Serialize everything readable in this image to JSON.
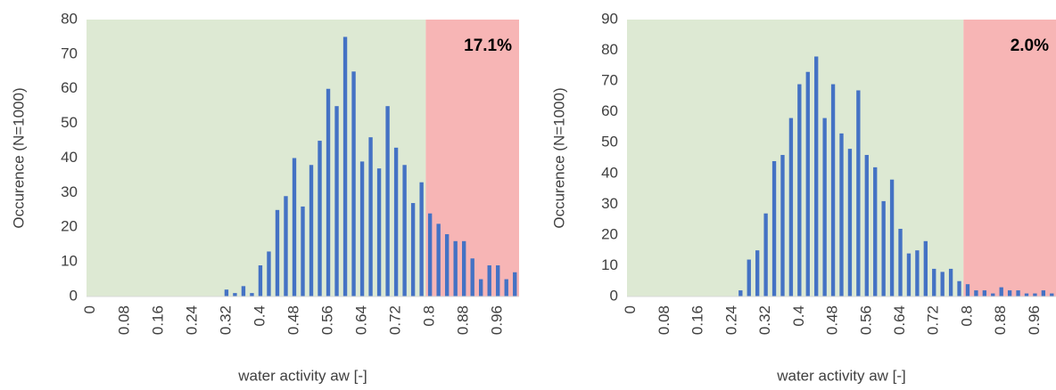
{
  "chart_data": [
    {
      "type": "bar",
      "x_label": "water activity aw [-]",
      "y_label": "Occurence (N=1000)",
      "annotation": "17.1%",
      "categories": [
        "0",
        null,
        null,
        null,
        "0.08",
        null,
        null,
        null,
        "0.16",
        null,
        null,
        null,
        "0.24",
        null,
        null,
        null,
        "0.32",
        null,
        null,
        null,
        "0.4",
        null,
        null,
        null,
        "0.48",
        null,
        null,
        null,
        "0.56",
        null,
        null,
        null,
        "0.64",
        null,
        null,
        null,
        "0.72",
        null,
        null,
        null,
        "0.8",
        null,
        null,
        null,
        "0.88",
        null,
        null,
        null,
        "0.96",
        null,
        null
      ],
      "values": [
        0,
        0,
        0,
        0,
        0,
        0,
        0,
        0,
        0,
        0,
        0,
        0,
        0,
        0,
        0,
        0,
        2,
        1,
        3,
        1,
        9,
        13,
        25,
        29,
        40,
        26,
        38,
        45,
        60,
        55,
        75,
        65,
        39,
        46,
        37,
        55,
        43,
        38,
        27,
        33,
        24,
        21,
        18,
        16,
        16,
        11,
        5,
        9,
        9,
        5,
        7
      ],
      "color": "#4472c4",
      "ylim": [
        0,
        80
      ],
      "yticks": [
        0,
        10,
        20,
        30,
        40,
        50,
        60,
        70,
        80
      ]
    },
    {
      "type": "bar",
      "x_label": "water activity aw [-]",
      "y_label": "Occurence (N=1000)",
      "annotation": "2.0%",
      "categories": [
        "0",
        null,
        null,
        null,
        "0.08",
        null,
        null,
        null,
        "0.16",
        null,
        null,
        null,
        "0.24",
        null,
        null,
        null,
        "0.32",
        null,
        null,
        null,
        "0.4",
        null,
        null,
        null,
        "0.48",
        null,
        null,
        null,
        "0.56",
        null,
        null,
        null,
        "0.64",
        null,
        null,
        null,
        "0.72",
        null,
        null,
        null,
        "0.8",
        null,
        null,
        null,
        "0.88",
        null,
        null,
        null,
        "0.96",
        null,
        null
      ],
      "values": [
        0,
        0,
        0,
        0,
        0,
        0,
        0,
        0,
        0,
        0,
        0,
        0,
        0,
        2,
        12,
        15,
        27,
        44,
        46,
        58,
        69,
        73,
        78,
        58,
        69,
        53,
        48,
        67,
        46,
        42,
        31,
        38,
        22,
        14,
        15,
        18,
        9,
        8,
        9,
        5,
        4,
        2,
        2,
        1,
        3,
        2,
        2,
        1,
        1,
        2,
        1
      ],
      "color": "#4472c4",
      "ylim": [
        0,
        90
      ],
      "yticks": [
        0,
        10,
        20,
        30,
        40,
        50,
        60,
        70,
        80,
        90
      ]
    }
  ]
}
